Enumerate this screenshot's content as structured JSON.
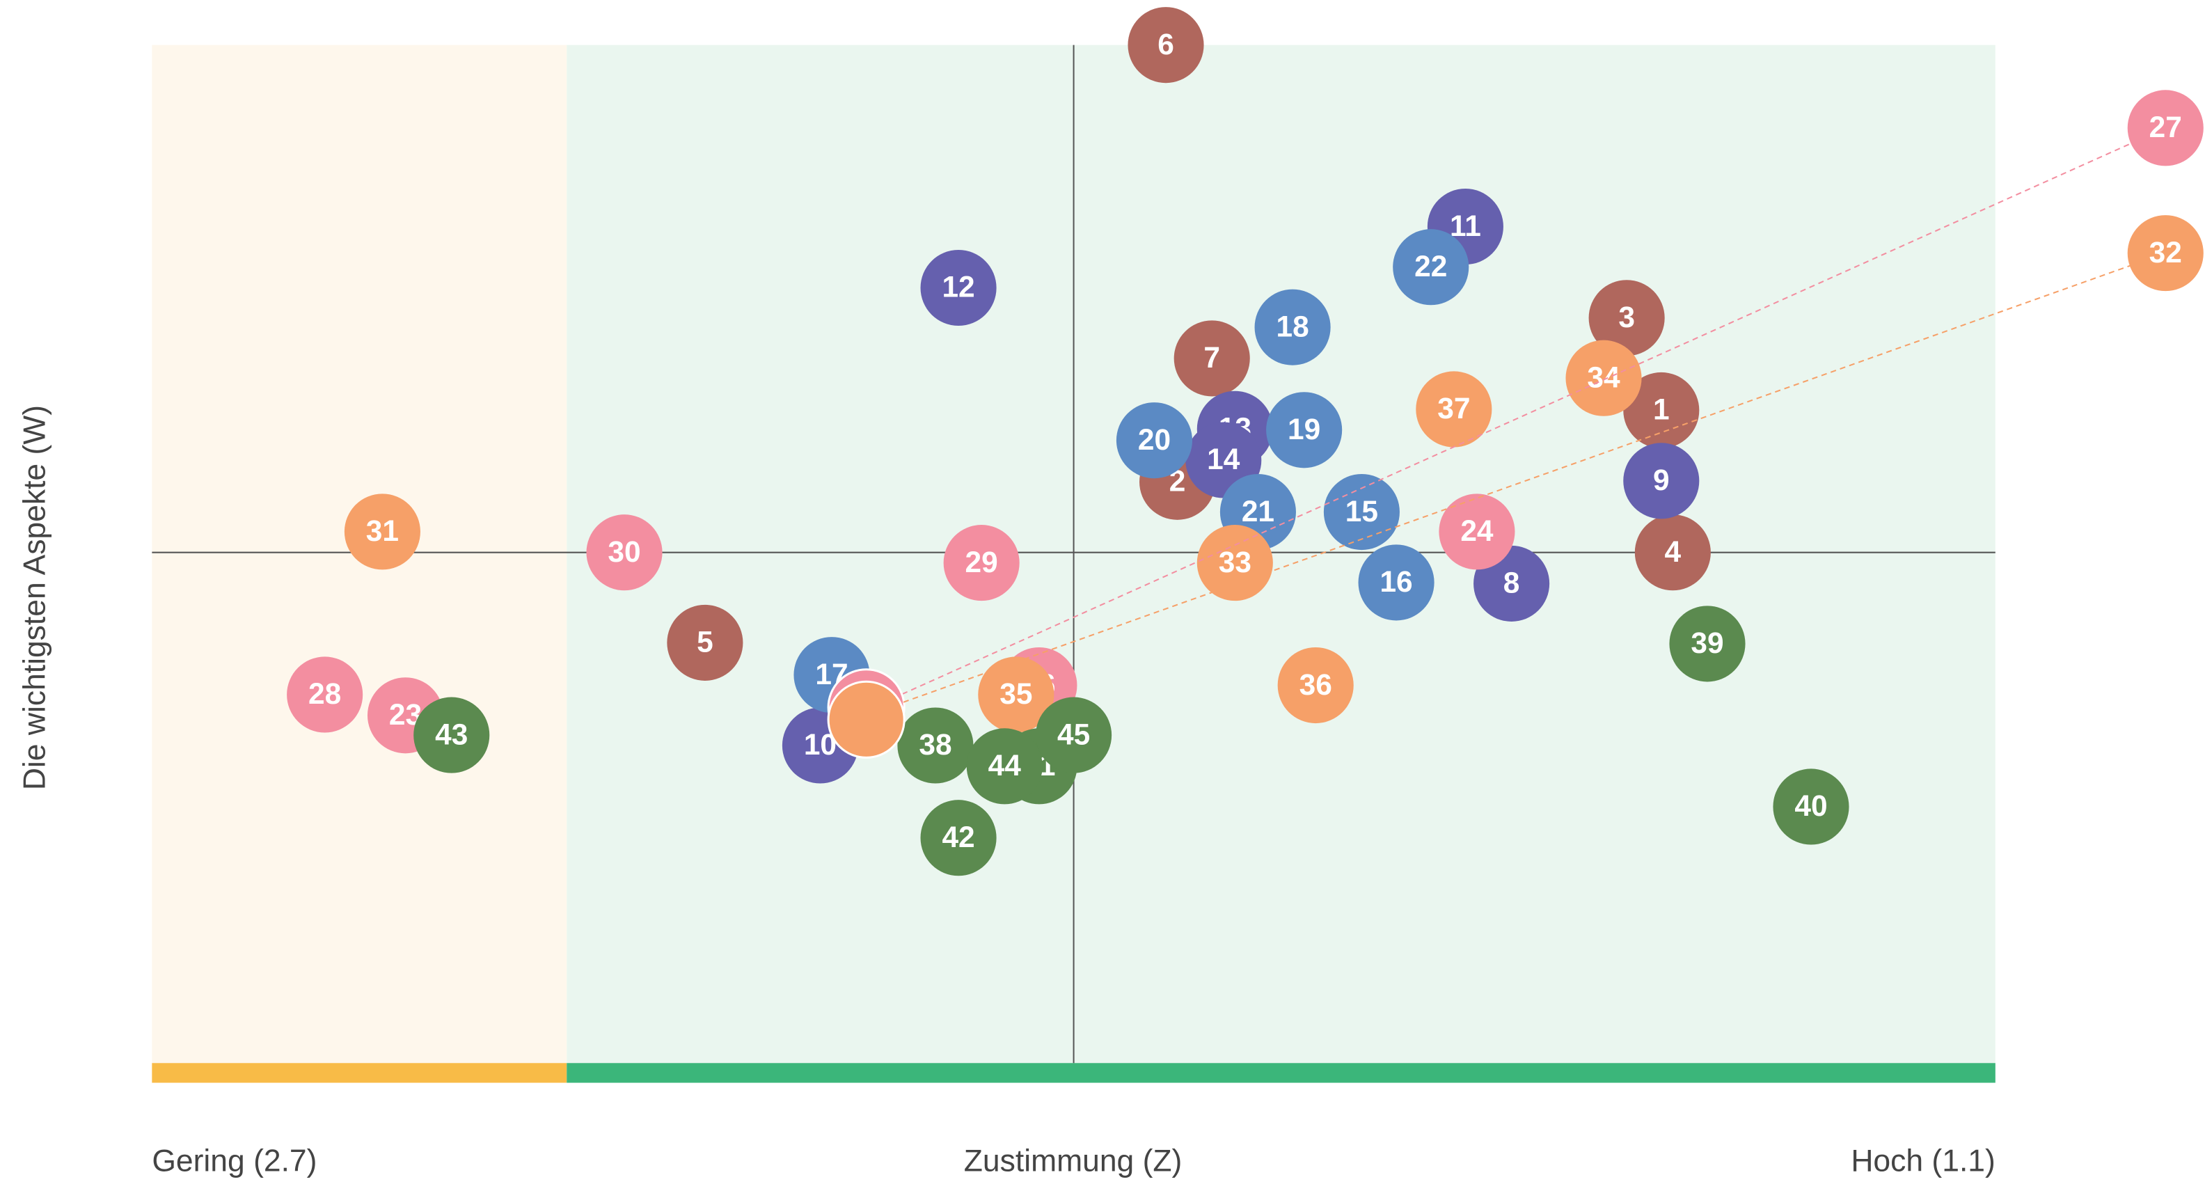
{
  "chart_data": {
    "type": "scatter",
    "x_label_left": "Gering (2.7)",
    "x_label": "Zustimmung (Z)",
    "x_label_right": "Hoch (1.1)",
    "y_label": "Die wichtigsten Aspekte (W)",
    "xlim": [
      2.7,
      1.1
    ],
    "ylim": [
      0,
      100
    ],
    "xline": 1.9,
    "yline": 51.1,
    "zones": [
      {
        "from": 2.7,
        "to": 2.34,
        "color": "#fef7ec",
        "bar_color": "#f8bb47"
      },
      {
        "from": 2.34,
        "to": 1.1,
        "color": "#eaf6ef",
        "bar_color": "#3bb67a"
      }
    ],
    "series": [
      {
        "color": "#b0675d",
        "labels": [
          "1",
          "2",
          "3",
          "4",
          "5",
          "6",
          "7"
        ],
        "x": [
          1.39,
          1.81,
          1.42,
          1.38,
          2.22,
          1.82,
          1.78
        ],
        "y": [
          64.8,
          57.9,
          73.7,
          51.1,
          42.4,
          100,
          69.8
        ]
      },
      {
        "color": "#6560ae",
        "labels": [
          "8",
          "9",
          "10",
          "11",
          "12",
          "13",
          "14"
        ],
        "x": [
          1.52,
          1.39,
          2.12,
          1.56,
          2.0,
          1.76,
          1.77
        ],
        "y": [
          48.1,
          58.0,
          32.5,
          82.5,
          76.6,
          63.0,
          60.0
        ]
      },
      {
        "color": "#5b8ac4",
        "labels": [
          "15",
          "16",
          "17",
          "18",
          "19",
          "20",
          "21",
          "22"
        ],
        "x": [
          1.65,
          1.62,
          2.11,
          1.71,
          1.7,
          1.83,
          1.74,
          1.59
        ],
        "y": [
          55.0,
          48.2,
          39.3,
          72.8,
          62.9,
          61.9,
          55.0,
          78.6
        ]
      },
      {
        "color": "#f38ea0",
        "labels": [
          "23",
          "24",
          "26",
          "27",
          "28",
          "29",
          "30"
        ],
        "x": [
          2.48,
          1.55,
          1.93,
          2.08,
          2.55,
          1.98,
          2.29
        ],
        "y": [
          35.4,
          53.1,
          38.3,
          35.9,
          37.4,
          50.1,
          51.1
        ]
      },
      {
        "color": "#f6a068",
        "labels": [
          "31",
          "32",
          "33",
          "34",
          "35",
          "36",
          "37"
        ],
        "x": [
          2.5,
          2.08,
          1.76,
          1.44,
          1.95,
          1.69,
          1.57
        ],
        "y": [
          53.1,
          35.4,
          50.1,
          67.9,
          37.4,
          38.3,
          64.9
        ]
      },
      {
        "color": "#5b8a4f",
        "labels": [
          "38",
          "39",
          "40",
          "41",
          "42",
          "43",
          "44",
          "45"
        ],
        "x": [
          2.02,
          1.35,
          1.26,
          1.93,
          2.0,
          2.44,
          1.96,
          1.9
        ],
        "y": [
          32.5,
          42.3,
          26.6,
          30.5,
          23.6,
          33.5,
          30.5,
          33.5
        ]
      }
    ]
  }
}
